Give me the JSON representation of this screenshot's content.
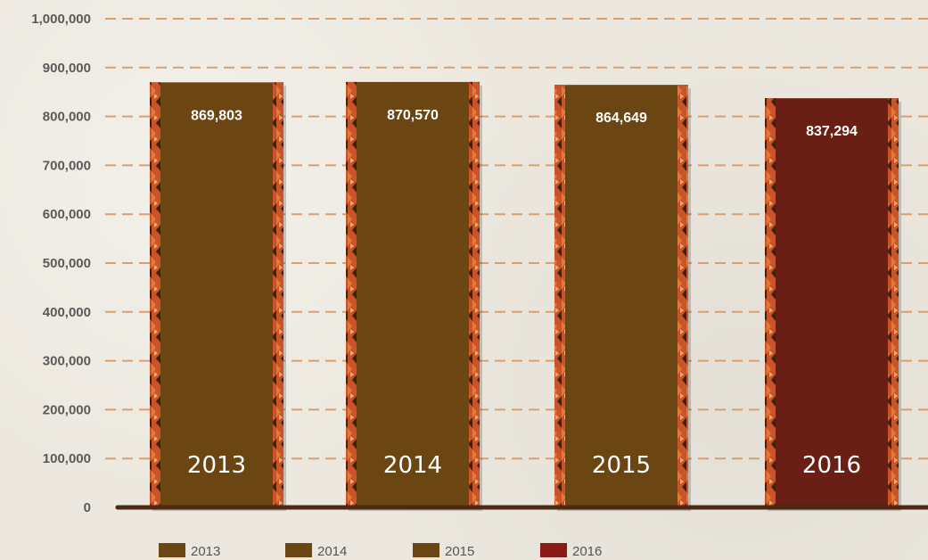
{
  "chart_data": {
    "type": "bar",
    "title": "",
    "xlabel": "",
    "ylabel": "",
    "categories": [
      "2013",
      "2014",
      "2015",
      "2016"
    ],
    "values": [
      869803,
      870570,
      864649,
      837294
    ],
    "value_labels": [
      "869,803",
      "870,570",
      "864,649",
      "837,294"
    ],
    "ylim": [
      0,
      1000000
    ],
    "yticks": [
      0,
      100000,
      200000,
      300000,
      400000,
      500000,
      600000,
      700000,
      800000,
      900000,
      1000000
    ],
    "ytick_labels": [
      "0",
      "100,000",
      "200,000",
      "300,000",
      "400,000",
      "500,000",
      "600,000",
      "700,000",
      "800,000",
      "900,000",
      "1,000,000"
    ],
    "grid": true,
    "legend": {
      "placement": "bottom",
      "entries": [
        {
          "label": "2013",
          "color": "#6b4512"
        },
        {
          "label": "2014",
          "color": "#6b4512"
        },
        {
          "label": "2015",
          "color": "#6b4512"
        },
        {
          "label": "2016",
          "color": "#8a1a14"
        }
      ]
    },
    "colors": {
      "bars": [
        "#6b4512",
        "#6b4512",
        "#6b4512",
        "#6a1f14"
      ],
      "grid": "#d8a070",
      "baseline": "#4a2a12",
      "border": "#c9542a"
    }
  }
}
